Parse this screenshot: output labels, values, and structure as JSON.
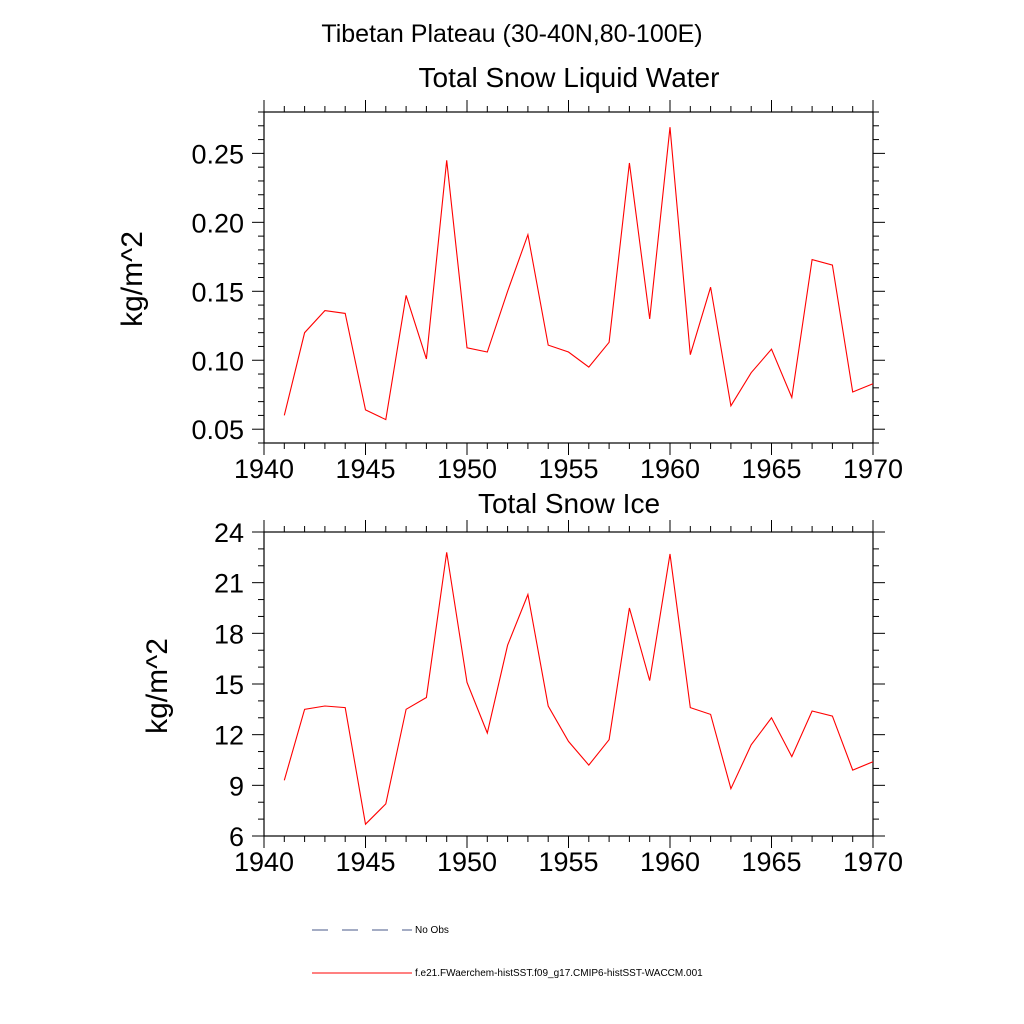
{
  "figure": {
    "suptitle": "Tibetan Plateau (30-40N,80-100E)",
    "legend": [
      {
        "label": "No Obs",
        "color": "#4a5a8a",
        "style": "dashed"
      },
      {
        "label": "f.e21.FWaerchem-histSST.f09_g17.CMIP6-histSST-WACCM.001",
        "color": "#ff0000",
        "style": "solid"
      }
    ]
  },
  "chart_data": [
    {
      "type": "line",
      "title": "Total Snow Liquid Water",
      "xlabel": "",
      "ylabel": "kg/m^2",
      "xlim": [
        1940,
        1970
      ],
      "ylim": [
        0.04,
        0.28
      ],
      "xticks": [
        1940,
        1945,
        1950,
        1955,
        1960,
        1965,
        1970
      ],
      "yticks": [
        0.05,
        0.1,
        0.15,
        0.2,
        0.25
      ],
      "ytick_labels": [
        "0.05",
        "0.10",
        "0.15",
        "0.20",
        "0.25"
      ],
      "y_minor_step": 0.01,
      "x_minor_step": 1,
      "grid": false,
      "series": [
        {
          "color": "#ff0000",
          "x": [
            1941,
            1942,
            1943,
            1944,
            1945,
            1946,
            1947,
            1948,
            1949,
            1950,
            1951,
            1952,
            1953,
            1954,
            1955,
            1956,
            1957,
            1958,
            1959,
            1960,
            1961,
            1962,
            1963,
            1964,
            1965,
            1966,
            1967,
            1968,
            1969,
            1970
          ],
          "values": [
            0.06,
            0.12,
            0.136,
            0.134,
            0.064,
            0.057,
            0.147,
            0.101,
            0.245,
            0.109,
            0.106,
            0.15,
            0.191,
            0.111,
            0.106,
            0.095,
            0.113,
            0.243,
            0.13,
            0.269,
            0.104,
            0.153,
            0.067,
            0.091,
            0.108,
            0.073,
            0.173,
            0.169,
            0.077,
            0.083
          ]
        }
      ]
    },
    {
      "type": "line",
      "title": "Total Snow Ice",
      "xlabel": "",
      "ylabel": "kg/m^2",
      "xlim": [
        1940,
        1970
      ],
      "ylim": [
        6,
        24
      ],
      "xticks": [
        1940,
        1945,
        1950,
        1955,
        1960,
        1965,
        1970
      ],
      "yticks": [
        6,
        9,
        12,
        15,
        18,
        21,
        24
      ],
      "ytick_labels": [
        "6",
        "9",
        "12",
        "15",
        "18",
        "21",
        "24"
      ],
      "y_minor_step": 1,
      "x_minor_step": 1,
      "grid": false,
      "series": [
        {
          "color": "#ff0000",
          "x": [
            1941,
            1942,
            1943,
            1944,
            1945,
            1946,
            1947,
            1948,
            1949,
            1950,
            1951,
            1952,
            1953,
            1954,
            1955,
            1956,
            1957,
            1958,
            1959,
            1960,
            1961,
            1962,
            1963,
            1964,
            1965,
            1966,
            1967,
            1968,
            1969,
            1970
          ],
          "values": [
            9.3,
            13.5,
            13.7,
            13.6,
            6.7,
            7.9,
            13.5,
            14.2,
            22.8,
            15.1,
            12.1,
            17.3,
            20.3,
            13.7,
            11.6,
            10.2,
            11.7,
            19.5,
            15.2,
            22.7,
            13.6,
            13.2,
            8.8,
            11.4,
            13.0,
            10.7,
            13.4,
            13.1,
            9.9,
            10.4
          ]
        }
      ]
    }
  ]
}
